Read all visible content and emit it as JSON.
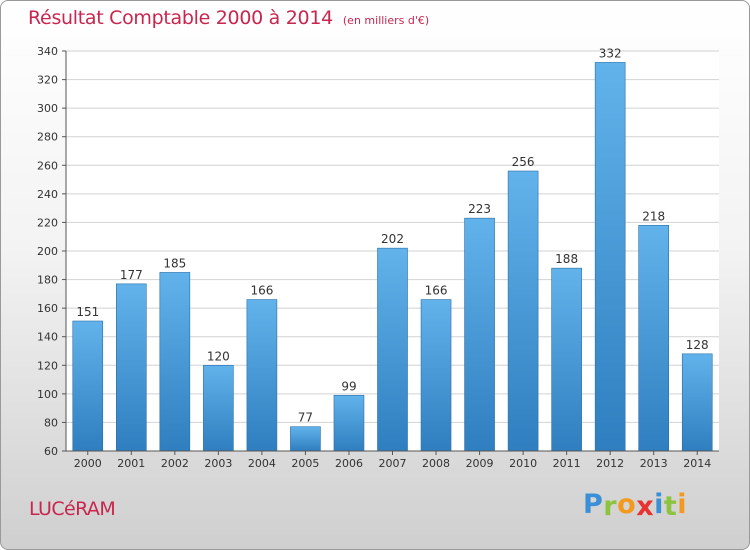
{
  "header": {
    "title": "Résultat Comptable 2000 à 2014",
    "subtitle": "(en milliers d'€)"
  },
  "footer": {
    "commune": "LUCéRAM",
    "logo": {
      "letters": [
        "P",
        "r",
        "o",
        "x",
        "i",
        "t",
        "i"
      ],
      "colors": [
        "#3a8fd6",
        "#8dc43f",
        "#f39a1e",
        "#e8322f",
        "#3a8fd6",
        "#8dc43f",
        "#f39a1e"
      ]
    }
  },
  "colors": {
    "bar_light": "#62b2eb",
    "bar_dark": "#2f7fc0",
    "title": "#c8264e",
    "grid": "#d2d2d2"
  },
  "chart_data": {
    "type": "bar",
    "title": "Résultat Comptable 2000 à 2014",
    "subtitle": "(en milliers d'€)",
    "xlabel": "",
    "ylabel": "",
    "categories": [
      "2000",
      "2001",
      "2002",
      "2003",
      "2004",
      "2005",
      "2006",
      "2007",
      "2008",
      "2009",
      "2010",
      "2011",
      "2012",
      "2013",
      "2014"
    ],
    "values": [
      151,
      177,
      185,
      120,
      166,
      77,
      99,
      202,
      166,
      223,
      256,
      188,
      332,
      218,
      128
    ],
    "ylim": [
      60,
      340
    ],
    "yticks": [
      60,
      80,
      100,
      120,
      140,
      160,
      180,
      200,
      220,
      240,
      260,
      280,
      300,
      320,
      340
    ],
    "grid": true,
    "legend": "none",
    "data_labels": true
  }
}
